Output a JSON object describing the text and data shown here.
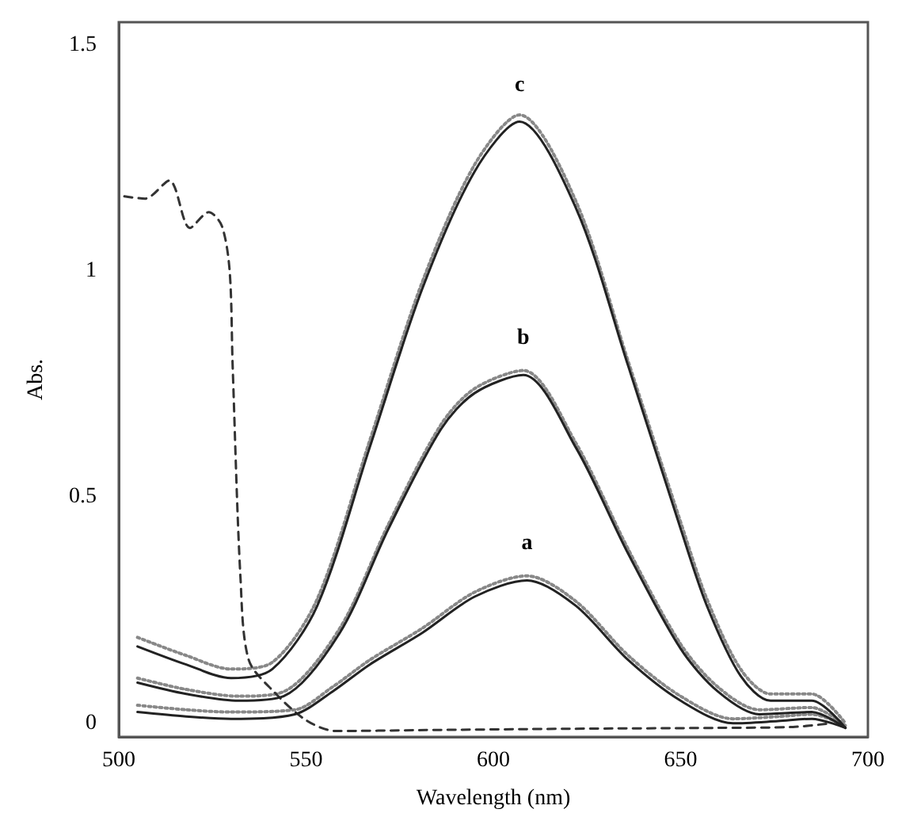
{
  "chart_data": {
    "type": "line",
    "xlabel": "Wavelength (nm)",
    "ylabel": "Abs.",
    "xlim": [
      500,
      700
    ],
    "xticks": [
      500,
      550,
      600,
      650,
      700
    ],
    "ylim": [
      -0.03,
      1.55
    ],
    "yticks": [
      0,
      0.5,
      1,
      1.5
    ],
    "grid": false,
    "marker": "none",
    "series": [
      {
        "color": "#333333",
        "line_style": "dashed",
        "x": [
          501.5,
          507,
          513.5,
          519,
          524,
          527.5,
          529.6,
          530.4,
          532.5,
          534.7,
          541.4,
          550,
          558,
          580,
          620,
          660,
          680,
          690
        ],
        "values": [
          1.165,
          1.16,
          1.2,
          1.095,
          1.13,
          1.1,
          1.0,
          0.79,
          0.32,
          0.14,
          0.07,
          0.007,
          -0.017,
          -0.015,
          -0.012,
          -0.01,
          -0.008,
          0.0
        ]
      },
      {
        "color": "#888888",
        "line_style": "dotted",
        "x": [
          505,
          518,
          530,
          541,
          553,
          567,
          581,
          595,
          607,
          622,
          636,
          650,
          657,
          666,
          674,
          685,
          694
        ],
        "values": [
          0.19,
          0.15,
          0.12,
          0.135,
          0.275,
          0.625,
          0.975,
          1.235,
          1.345,
          1.155,
          0.8,
          0.445,
          0.275,
          0.12,
          0.065,
          0.065,
          0.0
        ]
      },
      {
        "name": "c",
        "color": "#222222",
        "line_style": "solid",
        "x": [
          505,
          518,
          530,
          541,
          553,
          567,
          581,
          595,
          607,
          622,
          636,
          650,
          657,
          666,
          674,
          685,
          694
        ],
        "values": [
          0.17,
          0.13,
          0.1,
          0.12,
          0.26,
          0.61,
          0.96,
          1.22,
          1.33,
          1.14,
          0.79,
          0.43,
          0.26,
          0.105,
          0.05,
          0.05,
          -0.01
        ]
      },
      {
        "color": "#888888",
        "line_style": "dotted",
        "x": [
          505,
          518,
          532,
          544,
          559,
          572,
          586,
          595,
          608,
          622,
          636,
          650,
          660,
          671,
          685,
          694
        ],
        "values": [
          0.1,
          0.075,
          0.06,
          0.07,
          0.21,
          0.44,
          0.66,
          0.74,
          0.78,
          0.62,
          0.385,
          0.175,
          0.08,
          0.03,
          0.035,
          -0.005
        ]
      },
      {
        "name": "b",
        "color": "#222222",
        "line_style": "solid",
        "x": [
          505,
          518,
          532,
          544,
          559,
          572,
          586,
          595,
          608,
          622,
          636,
          650,
          660,
          671,
          685,
          694
        ],
        "values": [
          0.09,
          0.065,
          0.05,
          0.06,
          0.2,
          0.43,
          0.65,
          0.73,
          0.77,
          0.61,
          0.375,
          0.165,
          0.07,
          0.02,
          0.025,
          -0.01
        ]
      },
      {
        "color": "#888888",
        "line_style": "dotted",
        "x": [
          505,
          518,
          530,
          547,
          557,
          567,
          581,
          595,
          609,
          622,
          636,
          650,
          664,
          676,
          685,
          694
        ],
        "values": [
          0.04,
          0.03,
          0.025,
          0.03,
          0.08,
          0.14,
          0.21,
          0.29,
          0.326,
          0.27,
          0.15,
          0.06,
          0.01,
          0.015,
          0.02,
          -0.005
        ]
      },
      {
        "name": "a",
        "color": "#222222",
        "line_style": "solid",
        "x": [
          505,
          518,
          530,
          547,
          557,
          567,
          581,
          595,
          609,
          622,
          636,
          650,
          664,
          676,
          685,
          694
        ],
        "values": [
          0.025,
          0.015,
          0.01,
          0.02,
          0.07,
          0.13,
          0.2,
          0.28,
          0.316,
          0.26,
          0.14,
          0.05,
          0.0,
          0.005,
          0.01,
          -0.01
        ]
      }
    ]
  }
}
